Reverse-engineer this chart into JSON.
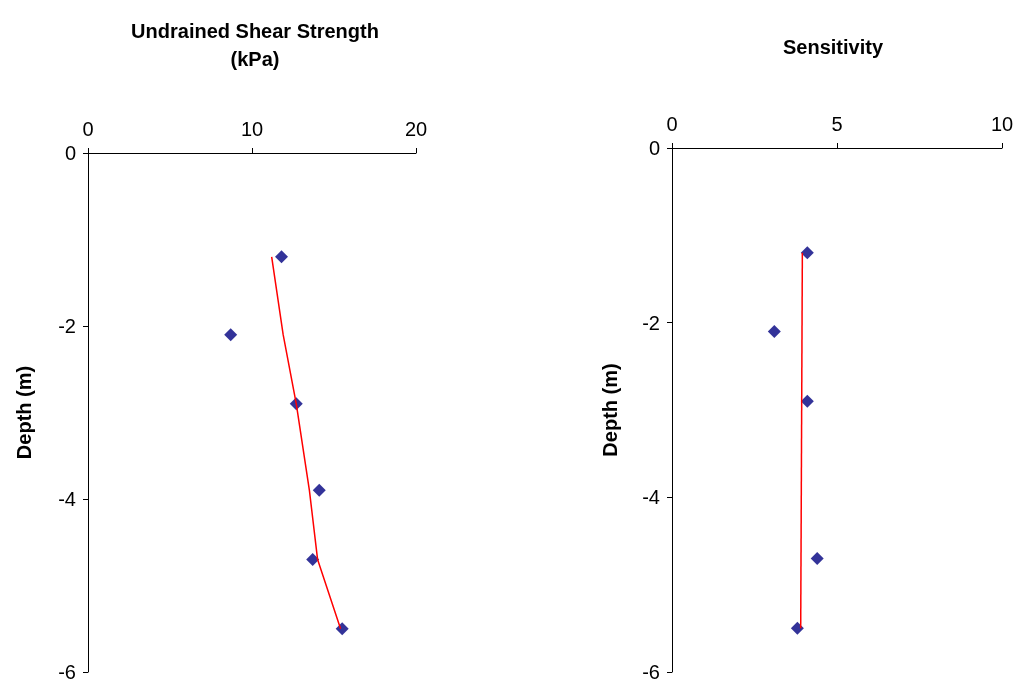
{
  "chart_data": [
    {
      "type": "scatter",
      "title": "Undrained Shear Strength\n(kPa)",
      "ylabel": "Depth (m)",
      "xlim": [
        0,
        20
      ],
      "xticks": [
        0,
        10,
        20
      ],
      "ylim": [
        -6,
        0
      ],
      "yticks": [
        -6,
        -4,
        -2,
        0
      ],
      "grid": false,
      "marker": "diamond",
      "series": [
        {
          "color": "#000080",
          "x": [
            11.8,
            8.7,
            12.7,
            14.1,
            13.7,
            15.5
          ],
          "values": [
            -1.2,
            -2.1,
            -2.9,
            -3.9,
            -4.7,
            -5.5
          ]
        },
        {
          "type": "line",
          "marker": "none",
          "color": "#ff0000",
          "x": [
            11.2,
            11.9,
            12.7,
            13.5,
            14.0,
            15.4
          ],
          "values": [
            -1.2,
            -2.1,
            -2.9,
            -3.9,
            -4.7,
            -5.5
          ]
        }
      ]
    },
    {
      "type": "scatter",
      "title": "Sensitivity",
      "ylabel": "Depth (m)",
      "xlim": [
        0,
        10
      ],
      "xticks": [
        0,
        5,
        10
      ],
      "ylim": [
        -6,
        0
      ],
      "yticks": [
        -6,
        -4,
        -2,
        0
      ],
      "grid": false,
      "marker": "diamond",
      "series": [
        {
          "color": "#000080",
          "x": [
            4.1,
            3.1,
            4.1,
            4.4,
            3.8
          ],
          "values": [
            -1.2,
            -2.1,
            -2.9,
            -4.7,
            -5.5
          ]
        },
        {
          "type": "line",
          "marker": "none",
          "color": "#ff0000",
          "x": [
            3.95,
            3.9
          ],
          "values": [
            -1.2,
            -5.5
          ]
        }
      ]
    }
  ]
}
